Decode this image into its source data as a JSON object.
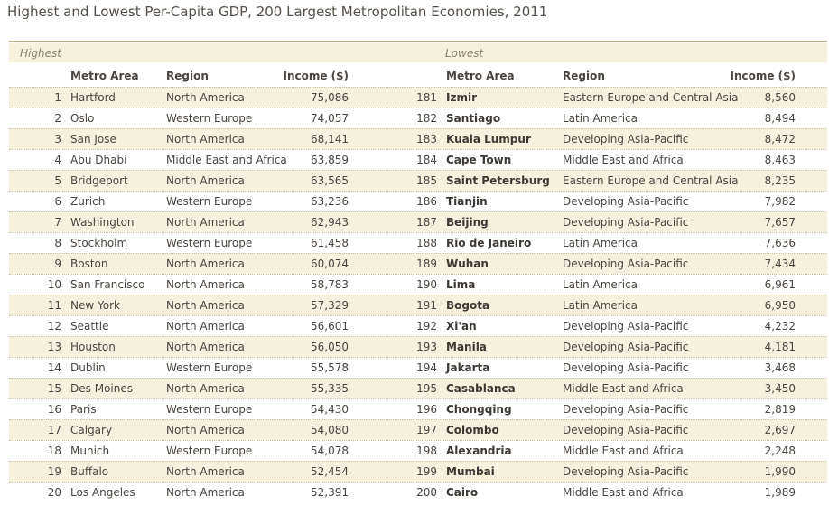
{
  "title": "Highest and Lowest Per-Capita GDP, 200 Largest Metropolitan Economies, 2011",
  "highest": {
    "label": "Highest",
    "headers": {
      "metro": "Metro Area",
      "region": "Region",
      "income": "Income ($)"
    },
    "rows": [
      {
        "rank": "1",
        "metro": "Hartford",
        "region": "North America",
        "income": "75,086"
      },
      {
        "rank": "2",
        "metro": "Oslo",
        "region": "Western Europe",
        "income": "74,057"
      },
      {
        "rank": "3",
        "metro": "San Jose",
        "region": "North America",
        "income": "68,141"
      },
      {
        "rank": "4",
        "metro": "Abu Dhabi",
        "region": "Middle East and Africa",
        "income": "63,859"
      },
      {
        "rank": "5",
        "metro": "Bridgeport",
        "region": "North America",
        "income": "63,565"
      },
      {
        "rank": "6",
        "metro": "Zurich",
        "region": "Western Europe",
        "income": "63,236"
      },
      {
        "rank": "7",
        "metro": "Washington",
        "region": "North America",
        "income": "62,943"
      },
      {
        "rank": "8",
        "metro": "Stockholm",
        "region": "Western Europe",
        "income": "61,458"
      },
      {
        "rank": "9",
        "metro": "Boston",
        "region": "North America",
        "income": "60,074"
      },
      {
        "rank": "10",
        "metro": "San Francisco",
        "region": "North America",
        "income": "58,783"
      },
      {
        "rank": "11",
        "metro": "New York",
        "region": "North America",
        "income": "57,329"
      },
      {
        "rank": "12",
        "metro": "Seattle",
        "region": "North America",
        "income": "56,601"
      },
      {
        "rank": "13",
        "metro": "Houston",
        "region": "North America",
        "income": "56,050"
      },
      {
        "rank": "14",
        "metro": "Dublin",
        "region": "Western Europe",
        "income": "55,578"
      },
      {
        "rank": "15",
        "metro": "Des Moines",
        "region": "North America",
        "income": "55,335"
      },
      {
        "rank": "16",
        "metro": "Paris",
        "region": "Western Europe",
        "income": "54,430"
      },
      {
        "rank": "17",
        "metro": "Calgary",
        "region": "North America",
        "income": "54,080"
      },
      {
        "rank": "18",
        "metro": "Munich",
        "region": "Western Europe",
        "income": "54,078"
      },
      {
        "rank": "19",
        "metro": "Buffalo",
        "region": "North America",
        "income": "52,454"
      },
      {
        "rank": "20",
        "metro": "Los Angeles",
        "region": "North America",
        "income": "52,391"
      }
    ]
  },
  "lowest": {
    "label": "Lowest",
    "headers": {
      "metro": "Metro Area",
      "region": "Region",
      "income": "Income ($)"
    },
    "rows": [
      {
        "rank": "181",
        "metro": "Izmir",
        "region": "Eastern Europe and Central Asia",
        "income": "8,560"
      },
      {
        "rank": "182",
        "metro": "Santiago",
        "region": "Latin America",
        "income": "8,494"
      },
      {
        "rank": "183",
        "metro": "Kuala Lumpur",
        "region": "Developing Asia-Pacific",
        "income": "8,472"
      },
      {
        "rank": "184",
        "metro": "Cape Town",
        "region": "Middle East and Africa",
        "income": "8,463"
      },
      {
        "rank": "185",
        "metro": "Saint Petersburg",
        "region": "Eastern Europe and Central Asia",
        "income": "8,235"
      },
      {
        "rank": "186",
        "metro": "Tianjin",
        "region": "Developing Asia-Pacific",
        "income": "7,982"
      },
      {
        "rank": "187",
        "metro": "Beijing",
        "region": "Developing Asia-Pacific",
        "income": "7,657"
      },
      {
        "rank": "188",
        "metro": "Rio de Janeiro",
        "region": "Latin America",
        "income": "7,636"
      },
      {
        "rank": "189",
        "metro": "Wuhan",
        "region": "Developing Asia-Pacific",
        "income": "7,434"
      },
      {
        "rank": "190",
        "metro": "Lima",
        "region": "Latin America",
        "income": "6,961"
      },
      {
        "rank": "191",
        "metro": "Bogota",
        "region": "Latin America",
        "income": "6,950"
      },
      {
        "rank": "192",
        "metro": "Xi'an",
        "region": "Developing Asia-Pacific",
        "income": "4,232"
      },
      {
        "rank": "193",
        "metro": "Manila",
        "region": "Developing Asia-Pacific",
        "income": "4,181"
      },
      {
        "rank": "194",
        "metro": "Jakarta",
        "region": "Developing Asia-Pacific",
        "income": "3,468"
      },
      {
        "rank": "195",
        "metro": "Casablanca",
        "region": "Middle East and Africa",
        "income": "3,450"
      },
      {
        "rank": "196",
        "metro": "Chongqing",
        "region": "Developing Asia-Pacific",
        "income": "2,819"
      },
      {
        "rank": "197",
        "metro": "Colombo",
        "region": "Developing Asia-Pacific",
        "income": "2,697"
      },
      {
        "rank": "198",
        "metro": "Alexandria",
        "region": "Middle East and Africa",
        "income": "2,248"
      },
      {
        "rank": "199",
        "metro": "Mumbai",
        "region": "Developing Asia-Pacific",
        "income": "1,990"
      },
      {
        "rank": "200",
        "metro": "Cairo",
        "region": "Middle East and Africa",
        "income": "1,989"
      }
    ]
  },
  "colors": {
    "shade": "#f6f1dc",
    "rule": "#b9ae8e",
    "text": "#4a4540"
  }
}
